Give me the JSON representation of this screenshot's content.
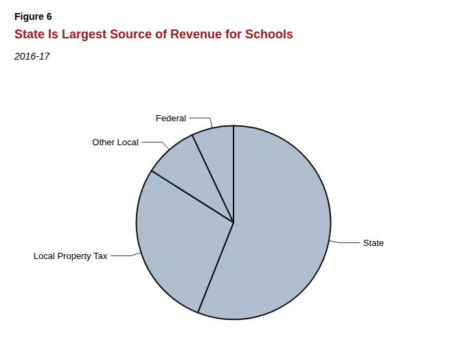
{
  "chart_data": {
    "type": "pie",
    "title": "State Is Largest Source of Revenue for Schools",
    "subtitle": "2016-17",
    "annotations": [
      "Figure 6"
    ],
    "categories": [
      "State",
      "Local Property Tax",
      "Other Local",
      "Federal"
    ],
    "values": [
      56,
      28,
      9,
      7
    ],
    "color": "#b0bfd0"
  }
}
